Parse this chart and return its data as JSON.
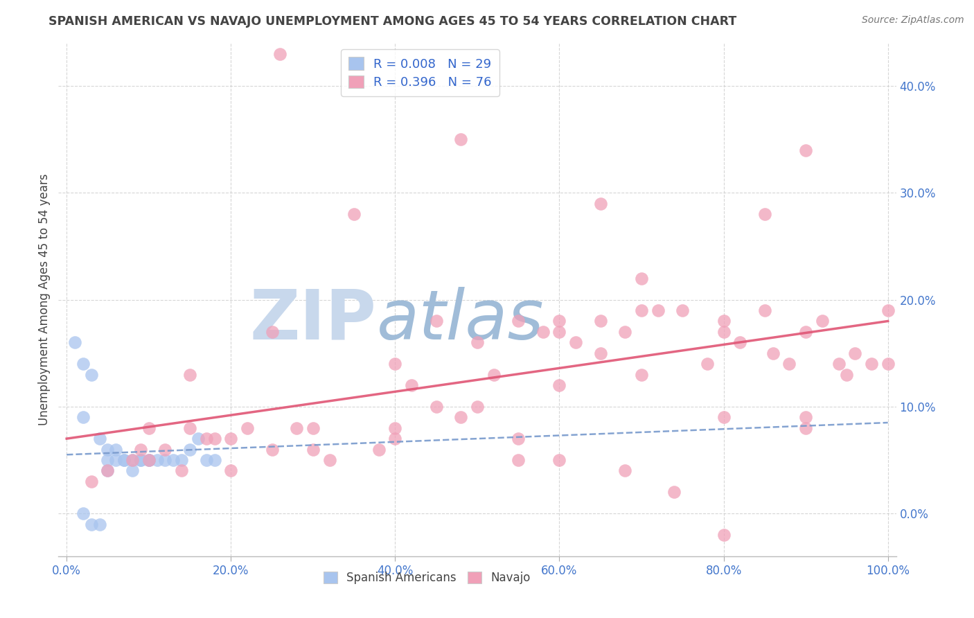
{
  "title": "SPANISH AMERICAN VS NAVAJO UNEMPLOYMENT AMONG AGES 45 TO 54 YEARS CORRELATION CHART",
  "source": "Source: ZipAtlas.com",
  "ylabel_label": "Unemployment Among Ages 45 to 54 years",
  "x_tick_vals": [
    0,
    20,
    40,
    60,
    80,
    100
  ],
  "y_tick_vals": [
    0,
    10,
    20,
    30,
    40
  ],
  "xlim": [
    -1,
    101
  ],
  "ylim": [
    -4,
    44
  ],
  "watermark_zip": "ZIP",
  "watermark_atlas": "atlas",
  "watermark_color_zip": "#c8d8ec",
  "watermark_color_atlas": "#a0bcd8",
  "blue_scatter_x": [
    1,
    2,
    2,
    3,
    3,
    4,
    4,
    5,
    5,
    5,
    6,
    6,
    7,
    7,
    8,
    8,
    9,
    9,
    10,
    10,
    11,
    12,
    13,
    14,
    15,
    16,
    17,
    18,
    2
  ],
  "blue_scatter_y": [
    16,
    14,
    0,
    13,
    -1,
    7,
    -1,
    6,
    5,
    4,
    6,
    5,
    5,
    5,
    5,
    4,
    5,
    5,
    5,
    5,
    5,
    5,
    5,
    5,
    6,
    7,
    5,
    5,
    9
  ],
  "pink_scatter_x": [
    3,
    5,
    8,
    9,
    10,
    12,
    14,
    15,
    17,
    18,
    20,
    22,
    25,
    26,
    28,
    30,
    32,
    35,
    38,
    40,
    40,
    42,
    45,
    45,
    48,
    48,
    50,
    52,
    55,
    55,
    55,
    58,
    60,
    60,
    60,
    62,
    65,
    65,
    68,
    68,
    70,
    70,
    72,
    74,
    75,
    78,
    80,
    80,
    82,
    85,
    86,
    88,
    90,
    90,
    92,
    94,
    95,
    96,
    98,
    100,
    65,
    80,
    85,
    90,
    25,
    15,
    10,
    20,
    30,
    40,
    50,
    60,
    70,
    80,
    90,
    100
  ],
  "pink_scatter_y": [
    3,
    4,
    5,
    6,
    5,
    6,
    4,
    8,
    7,
    7,
    7,
    8,
    6,
    43,
    8,
    8,
    5,
    28,
    6,
    8,
    14,
    12,
    18,
    10,
    35,
    9,
    16,
    13,
    18,
    7,
    5,
    17,
    17,
    12,
    5,
    16,
    18,
    15,
    17,
    4,
    22,
    13,
    19,
    2,
    19,
    14,
    17,
    -2,
    16,
    19,
    15,
    14,
    17,
    9,
    18,
    14,
    13,
    15,
    14,
    14,
    29,
    9,
    28,
    34,
    17,
    13,
    8,
    4,
    6,
    7,
    10,
    18,
    19,
    18,
    8,
    19
  ],
  "blue_line_x": [
    0,
    100
  ],
  "blue_line_y": [
    5.5,
    8.5
  ],
  "pink_line_x": [
    0,
    100
  ],
  "pink_line_y": [
    7.0,
    18.0
  ],
  "bg_color": "#ffffff",
  "title_color": "#444444",
  "source_color": "#777777",
  "ylabel_color": "#444444",
  "tick_color": "#4477cc",
  "grid_color": "#cccccc",
  "grid_style": "--",
  "blue_dot_color": "#a8c4ee",
  "pink_dot_color": "#f0a0b8",
  "blue_line_color": "#7799cc",
  "pink_line_color": "#e05575",
  "legend_text_color": "#3366cc",
  "legend_entry_1": "R = 0.008   N = 29",
  "legend_entry_2": "R = 0.396   N = 76",
  "bottom_legend_1": "Spanish Americans",
  "bottom_legend_2": "Navajo"
}
